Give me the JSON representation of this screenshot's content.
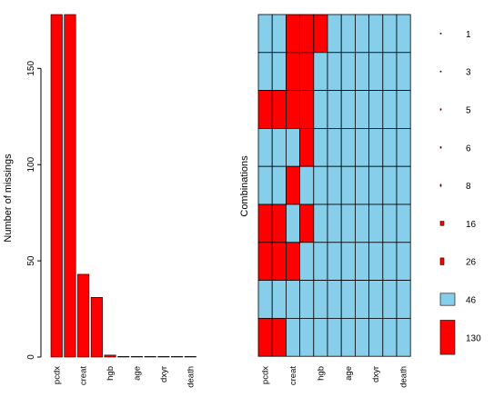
{
  "chart_data": [
    {
      "type": "bar",
      "ylabel": "Number of missings",
      "categories": [
        "pcdx",
        "pcdx",
        "creat",
        "creat",
        "hgb",
        "age",
        "age",
        "dxyr",
        "dxyr",
        "death",
        "death"
      ],
      "values": [
        178,
        178,
        43,
        31,
        1,
        0,
        0,
        0,
        0,
        0,
        0
      ],
      "ylim": [
        0,
        178
      ],
      "yticks": [
        0,
        50,
        100,
        150
      ],
      "xlabels": [
        "pcdx",
        "creat",
        "hgb",
        "age",
        "dxyr",
        "death"
      ],
      "bar_color": "#ff0000"
    },
    {
      "type": "heatmap",
      "ylabel": "Combinations",
      "columns": [
        "pcdx",
        "",
        "creat",
        "",
        "hgb",
        "",
        "age",
        "",
        "dxyr",
        "",
        "death"
      ],
      "xlabels": [
        "pcdx",
        "creat",
        "hgb",
        "age",
        "dxyr",
        "death"
      ],
      "rows": [
        {
          "count": 1,
          "missing": [
            0,
            0,
            1,
            1,
            1,
            0,
            0,
            0,
            0,
            0,
            0
          ]
        },
        {
          "count": 3,
          "missing": [
            0,
            0,
            1,
            1,
            0,
            0,
            0,
            0,
            0,
            0,
            0
          ]
        },
        {
          "count": 5,
          "missing": [
            1,
            1,
            1,
            1,
            0,
            0,
            0,
            0,
            0,
            0,
            0
          ]
        },
        {
          "count": 6,
          "missing": [
            0,
            0,
            0,
            1,
            0,
            0,
            0,
            0,
            0,
            0,
            0
          ]
        },
        {
          "count": 8,
          "missing": [
            0,
            0,
            1,
            0,
            0,
            0,
            0,
            0,
            0,
            0,
            0
          ]
        },
        {
          "count": 16,
          "missing": [
            1,
            1,
            0,
            1,
            0,
            0,
            0,
            0,
            0,
            0,
            0
          ]
        },
        {
          "count": 26,
          "missing": [
            1,
            1,
            1,
            0,
            0,
            0,
            0,
            0,
            0,
            0,
            0
          ]
        },
        {
          "count": 46,
          "missing": [
            0,
            0,
            0,
            0,
            0,
            0,
            0,
            0,
            0,
            0,
            0
          ]
        },
        {
          "count": 130,
          "missing": [
            1,
            1,
            0,
            0,
            0,
            0,
            0,
            0,
            0,
            0,
            0
          ]
        }
      ],
      "counts_max": 130,
      "missing_color": "#ff0000",
      "present_color": "#87ceeb"
    }
  ]
}
